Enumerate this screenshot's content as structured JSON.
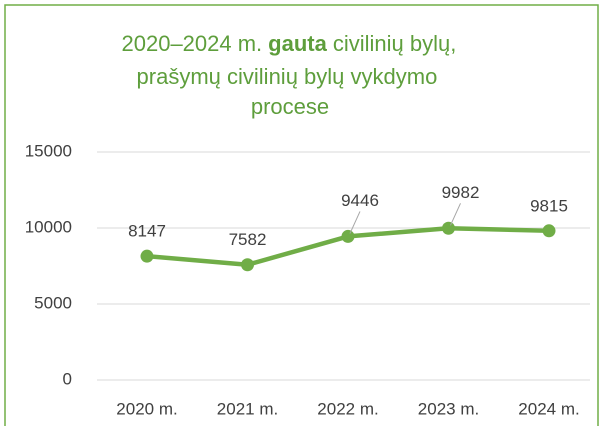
{
  "chart_data": {
    "type": "line",
    "title": [
      "2020–2024 m.",
      "gauta",
      "civilinių bylų,",
      "prašymų civilinių bylų vykdymo",
      "procese"
    ],
    "categories": [
      "2020 m.",
      "2021 m.",
      "2022 m.",
      "2023 m.",
      "2024 m."
    ],
    "series": [
      {
        "color": "#70ad47",
        "values": [
          8147,
          7582,
          9446,
          9982,
          9815
        ]
      }
    ],
    "ylim": [
      0,
      15000
    ],
    "yticks": [
      0,
      5000,
      10000,
      15000
    ],
    "grid": true
  }
}
